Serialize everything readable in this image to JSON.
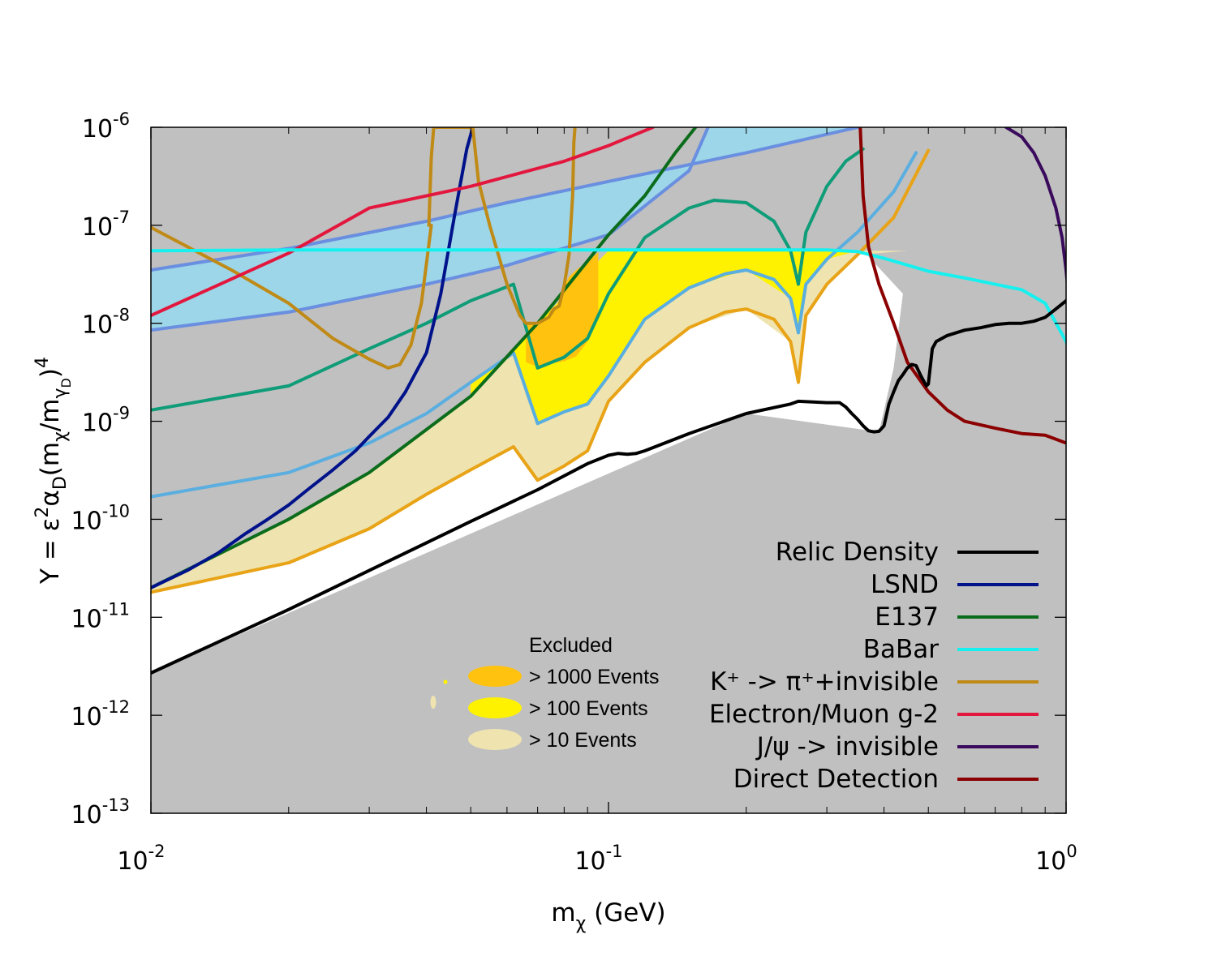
{
  "chart_data": {
    "type": "line",
    "xscale": "log",
    "yscale": "log",
    "xlim": [
      0.01,
      1.0
    ],
    "ylim": [
      1e-13,
      1e-06
    ],
    "x_ticks": [
      {
        "base": "10",
        "exp": "-2",
        "value": 0.01
      },
      {
        "base": "10",
        "exp": "-1",
        "value": 0.1
      },
      {
        "base": "10",
        "exp": "0",
        "value": 1.0
      }
    ],
    "y_ticks": [
      {
        "base": "10",
        "exp": "-6",
        "value": 1e-06
      },
      {
        "base": "10",
        "exp": "-7",
        "value": 1e-07
      },
      {
        "base": "10",
        "exp": "-8",
        "value": 1e-08
      },
      {
        "base": "10",
        "exp": "-9",
        "value": 1e-09
      },
      {
        "base": "10",
        "exp": "-10",
        "value": 1e-10
      },
      {
        "base": "10",
        "exp": "-11",
        "value": 1e-11
      },
      {
        "base": "10",
        "exp": "-12",
        "value": 1e-12
      },
      {
        "base": "10",
        "exp": "-13",
        "value": 1e-13
      }
    ],
    "xlabel": {
      "main": "m",
      "sub": "χ",
      "tail": " (GeV)"
    },
    "ylabel": {
      "prefix": "Y = ε",
      "sup1": "2",
      "alpha": "α",
      "sub1": "D",
      "mid": "(m",
      "sub2": "χ",
      "slash": "/m",
      "sub3": "γ",
      "sub4": "D",
      "close": ")",
      "sup2": "4"
    },
    "regions": [
      {
        "name": "Excluded",
        "label": "Excluded",
        "color": "#c0c0c0"
      },
      {
        "name": "> 1000 Events",
        "label": "> 1000 Events",
        "color": "#ffc20e",
        "x": [
          0.066,
          0.068,
          0.07,
          0.073,
          0.075,
          0.078,
          0.08,
          0.082,
          0.085,
          0.09,
          0.095,
          0.095,
          0.09,
          0.085,
          0.08,
          0.075,
          0.07,
          0.066
        ],
        "y": [
          1.05e-08,
          1e-08,
          1.02e-08,
          1.1e-08,
          1.4e-08,
          1.5e-08,
          2.4e-08,
          3e-08,
          3.5e-08,
          4.3e-08,
          5.3e-08,
          1.2e-08,
          6.5e-09,
          4.6e-09,
          4.1e-09,
          3.9e-09,
          3.6e-09,
          4e-09
        ]
      },
      {
        "name": "> 100 Events",
        "label": "> 100 Events",
        "color": "#fff200"
      },
      {
        "name": "> 10 Events",
        "label": "> 10 Events",
        "color": "#efe4b0"
      },
      {
        "name": "light-blue-band",
        "color": "#9cd6e8"
      }
    ],
    "bands": {
      "blue_upper": {
        "x": [
          0.01,
          0.02,
          0.04,
          0.06,
          0.1,
          0.2,
          0.35
        ],
        "y": [
          3.5e-08,
          5.8e-08,
          1.1e-07,
          1.7e-07,
          2.8e-07,
          5.5e-07,
          1e-06
        ]
      },
      "blue_lower": {
        "x": [
          0.01,
          0.02,
          0.04,
          0.06,
          0.1,
          0.15,
          0.165
        ],
        "y": [
          8.5e-09,
          1.3e-08,
          2.5e-08,
          3.9e-08,
          8e-08,
          3.6e-07,
          1e-06
        ]
      },
      "events100_lower": {
        "x": [
          0.01,
          0.02,
          0.03,
          0.04,
          0.05,
          0.062,
          0.07,
          0.08,
          0.09,
          0.1,
          0.12,
          0.15,
          0.2,
          0.25,
          0.26,
          0.27,
          0.3,
          0.35,
          0.45,
          0.5
        ],
        "y": [
          1.7e-10,
          3e-10,
          6e-10,
          1.2e-09,
          2.5e-09,
          5e-09,
          9.5e-10,
          1.25e-09,
          1.5e-09,
          2.9e-09,
          1.1e-08,
          2.3e-08,
          3.5e-08,
          1.8e-08,
          8e-09,
          2.5e-08,
          4.5e-08,
          6e-08,
          2.2e-07,
          5.5e-07
        ]
      },
      "events10_lower": {
        "x": [
          0.01,
          0.02,
          0.03,
          0.04,
          0.05,
          0.062,
          0.07,
          0.08,
          0.09,
          0.1,
          0.12,
          0.15,
          0.2,
          0.25,
          0.26,
          0.27,
          0.3,
          0.35,
          0.45,
          0.51
        ],
        "y": [
          1.8e-11,
          3.6e-11,
          8e-11,
          1.8e-10,
          3.2e-10,
          5.5e-10,
          2.5e-10,
          3.5e-10,
          5e-10,
          1.6e-09,
          4e-09,
          9e-09,
          1.4e-08,
          6.5e-09,
          2.5e-09,
          1.2e-08,
          2.5e-08,
          5e-08,
          2e-07,
          6e-07
        ]
      },
      "y_cap": 5.5e-08
    },
    "series": [
      {
        "name": "Relic Density",
        "label": "Relic Density",
        "color": "#000000",
        "x": [
          0.01,
          0.02,
          0.03,
          0.05,
          0.07,
          0.09,
          0.1,
          0.105,
          0.11,
          0.115,
          0.12,
          0.15,
          0.2,
          0.25,
          0.26,
          0.3,
          0.32,
          0.33,
          0.34,
          0.35,
          0.36,
          0.37,
          0.38,
          0.39,
          0.4,
          0.41,
          0.42,
          0.43,
          0.44,
          0.45,
          0.46,
          0.47,
          0.48,
          0.49,
          0.495,
          0.5,
          0.51,
          0.52,
          0.55,
          0.6,
          0.65,
          0.7,
          0.75,
          0.8,
          0.85,
          0.9,
          0.95,
          1.0,
          1.02
        ],
        "y": [
          2.7e-12,
          1.2e-11,
          3e-11,
          9.5e-11,
          2e-10,
          3.7e-10,
          4.5e-10,
          4.7e-10,
          4.6e-10,
          4.7e-10,
          5e-10,
          7.5e-10,
          1.2e-09,
          1.5e-09,
          1.6e-09,
          1.55e-09,
          1.55e-09,
          1.4e-09,
          1.2e-09,
          1.05e-09,
          9e-10,
          8e-10,
          7.8e-10,
          7.9e-10,
          9e-10,
          1.5e-09,
          2e-09,
          2.6e-09,
          3e-09,
          3.5e-09,
          3.8e-09,
          3.7e-09,
          3e-09,
          2.5e-09,
          2.3e-09,
          2.4e-09,
          5.5e-09,
          6.5e-09,
          7.5e-09,
          8.5e-09,
          9e-09,
          9.7e-09,
          1e-08,
          1e-08,
          1.05e-08,
          1.15e-08,
          1.4e-08,
          1.7e-08,
          1.9e-08
        ]
      },
      {
        "name": "LSND",
        "label": "LSND",
        "color": "#00128a",
        "x": [
          0.01,
          0.012,
          0.014,
          0.016,
          0.018,
          0.02,
          0.022,
          0.025,
          0.028,
          0.03,
          0.033,
          0.036,
          0.04,
          0.043,
          0.046,
          0.049,
          0.0505
        ],
        "y": [
          2e-11,
          3e-11,
          4.5e-11,
          7e-11,
          1e-10,
          1.4e-10,
          2e-10,
          3.2e-10,
          5e-10,
          7e-10,
          1.1e-09,
          2e-09,
          5e-09,
          2e-08,
          1.2e-07,
          6e-07,
          1e-06
        ]
      },
      {
        "name": "E137",
        "label": "E137",
        "color": "#0b6c1b",
        "x": [
          0.01,
          0.02,
          0.03,
          0.05,
          0.07,
          0.1,
          0.12,
          0.14,
          0.155
        ],
        "y": [
          2e-11,
          1e-10,
          3e-10,
          1.8e-09,
          1e-08,
          8e-08,
          2e-07,
          5.5e-07,
          1e-06
        ]
      },
      {
        "name": "E137-teal",
        "color": "#0f9c78",
        "x": [
          0.01,
          0.02,
          0.03,
          0.04,
          0.05,
          0.062,
          0.07,
          0.08,
          0.09,
          0.1,
          0.12,
          0.15,
          0.17,
          0.2,
          0.23,
          0.25,
          0.26,
          0.27,
          0.3,
          0.33,
          0.36
        ],
        "y": [
          1.3e-09,
          2.3e-09,
          5.5e-09,
          1e-08,
          1.7e-08,
          2.5e-08,
          3.5e-09,
          4.5e-09,
          7e-09,
          2e-08,
          7.5e-08,
          1.5e-07,
          1.8e-07,
          1.7e-07,
          1.1e-07,
          5.5e-08,
          2.5e-08,
          8.5e-08,
          2.5e-07,
          4.5e-07,
          6e-07
        ]
      },
      {
        "name": "events100-lightblue",
        "color": "#5aaee0",
        "x": [
          0.01,
          0.02,
          0.03,
          0.04,
          0.05,
          0.062,
          0.07,
          0.08,
          0.09,
          0.1,
          0.12,
          0.15,
          0.18,
          0.2,
          0.23,
          0.25,
          0.26,
          0.27,
          0.3,
          0.35,
          0.42,
          0.47
        ],
        "y": [
          1.7e-10,
          3e-10,
          6e-10,
          1.2e-09,
          2.5e-09,
          5e-09,
          9.5e-10,
          1.25e-09,
          1.5e-09,
          2.9e-09,
          1.1e-08,
          2.3e-08,
          3.2e-08,
          3.5e-08,
          2.8e-08,
          1.8e-08,
          8e-09,
          2.5e-08,
          4.5e-08,
          8.5e-08,
          2.2e-07,
          5.5e-07
        ]
      },
      {
        "name": "events10-orange",
        "color": "#e8a317",
        "x": [
          0.01,
          0.02,
          0.03,
          0.04,
          0.05,
          0.062,
          0.07,
          0.08,
          0.09,
          0.1,
          0.12,
          0.15,
          0.18,
          0.2,
          0.23,
          0.25,
          0.26,
          0.27,
          0.3,
          0.35,
          0.42,
          0.5
        ],
        "y": [
          1.8e-11,
          3.6e-11,
          8e-11,
          1.8e-10,
          3.2e-10,
          5.5e-10,
          2.5e-10,
          3.5e-10,
          5e-10,
          1.6e-09,
          4e-09,
          9e-09,
          1.3e-08,
          1.4e-08,
          1.1e-08,
          6.5e-09,
          2.5e-09,
          1.2e-08,
          2.5e-08,
          5e-08,
          1.2e-07,
          5.8e-07
        ]
      },
      {
        "name": "BaBar",
        "label": "BaBar",
        "color": "#16f0ef",
        "x": [
          0.01,
          0.02,
          0.05,
          0.1,
          0.2,
          0.3,
          0.35,
          0.4,
          0.5,
          0.6,
          0.7,
          0.8,
          0.9,
          1.0,
          1.02
        ],
        "y": [
          5.5e-08,
          5.6e-08,
          5.6e-08,
          5.6e-08,
          5.6e-08,
          5.6e-08,
          5.4e-08,
          4.6e-08,
          3.4e-08,
          2.9e-08,
          2.5e-08,
          2.2e-08,
          1.6e-08,
          6.5e-09,
          4.8e-09
        ]
      },
      {
        "name": "K+ -> pi+ + invisible",
        "label": "K⁺ -> π⁺+invisible",
        "color": "#c08a16",
        "x": [
          0.01,
          0.015,
          0.02,
          0.025,
          0.03,
          0.033,
          0.035,
          0.037,
          0.039,
          0.041,
          0.0405,
          0.041,
          0.0415,
          0.0505,
          0.052,
          0.055,
          0.06,
          0.064,
          0.066,
          0.07,
          0.074,
          0.076,
          0.078,
          0.08,
          0.082,
          0.0835,
          0.084,
          0.0845
        ],
        "y": [
          9.5e-08,
          3.5e-08,
          1.6e-08,
          7e-09,
          4.3e-09,
          3.5e-09,
          3.8e-09,
          6e-09,
          1.6e-08,
          1e-07,
          1e-07,
          5e-07,
          1e-06,
          1e-06,
          2.8e-07,
          1e-07,
          2.5e-08,
          1.2e-08,
          1e-08,
          1e-08,
          1.15e-08,
          1.4e-08,
          1.5e-08,
          2.4e-08,
          5e-08,
          2e-07,
          7e-07,
          1e-06
        ]
      },
      {
        "name": "Electron/Muon g-2",
        "label": "Electron/Muon g-2",
        "color": "#e3173e",
        "x": [
          0.01,
          0.02,
          0.03,
          0.05,
          0.08,
          0.1,
          0.125
        ],
        "y": [
          1.2e-08,
          5.2e-08,
          1.5e-07,
          2.5e-07,
          4.5e-07,
          6.5e-07,
          1e-06
        ]
      },
      {
        "name": "J/psi -> invisible",
        "label": "J/ψ -> invisible",
        "color": "#3a0a5c",
        "x": [
          0.74,
          0.8,
          0.85,
          0.9,
          0.95,
          0.98,
          1.0,
          1.02
        ],
        "y": [
          1e-06,
          8e-07,
          5.5e-07,
          3.2e-07,
          1.5e-07,
          7.5e-08,
          3.5e-08,
          1.3e-08
        ]
      },
      {
        "name": "Direct Detection",
        "label": "Direct Detection",
        "color": "#8b0000",
        "x": [
          0.355,
          0.36,
          0.37,
          0.39,
          0.42,
          0.45,
          0.5,
          0.55,
          0.6,
          0.7,
          0.8,
          0.9,
          1.0,
          1.02
        ],
        "y": [
          1e-06,
          2e-07,
          6e-08,
          2.5e-08,
          1e-08,
          4e-09,
          2e-09,
          1.3e-09,
          1e-09,
          8.5e-10,
          7.5e-10,
          7.2e-10,
          6e-10,
          5.8e-10
        ]
      },
      {
        "name": "blue-band-upper",
        "color": "#6a8fe0",
        "x": [
          0.01,
          0.02,
          0.04,
          0.06,
          0.1,
          0.2,
          0.35
        ],
        "y": [
          3.5e-08,
          5.8e-08,
          1.1e-07,
          1.7e-07,
          2.8e-07,
          5.5e-07,
          1e-06
        ]
      },
      {
        "name": "blue-band-lower",
        "color": "#6a8fe0",
        "x": [
          0.01,
          0.02,
          0.04,
          0.06,
          0.1,
          0.15,
          0.165
        ],
        "y": [
          8.5e-09,
          1.3e-08,
          2.5e-08,
          3.9e-08,
          8e-08,
          3.6e-07,
          1e-06
        ]
      }
    ],
    "legend_lines": [
      {
        "label": "Relic Density",
        "color": "#000000"
      },
      {
        "label": "LSND",
        "color": "#00128a"
      },
      {
        "label": "E137",
        "color": "#0b6c1b"
      },
      {
        "label": "BaBar",
        "color": "#16f0ef"
      },
      {
        "label": "K⁺ -> π⁺+invisible",
        "color": "#c08a16"
      },
      {
        "label": "Electron/Muon g-2",
        "color": "#e3173e"
      },
      {
        "label": "J/ψ -> invisible",
        "color": "#3a0a5c"
      },
      {
        "label": "Direct Detection",
        "color": "#8b0000"
      }
    ],
    "legend_regions": [
      {
        "label": "Excluded",
        "color": "#c0c0c0"
      },
      {
        "label": "> 1000 Events",
        "color": "#ffc20e"
      },
      {
        "label": "> 100 Events",
        "color": "#fff200"
      },
      {
        "label": "> 10 Events",
        "color": "#efe4b0"
      }
    ]
  }
}
